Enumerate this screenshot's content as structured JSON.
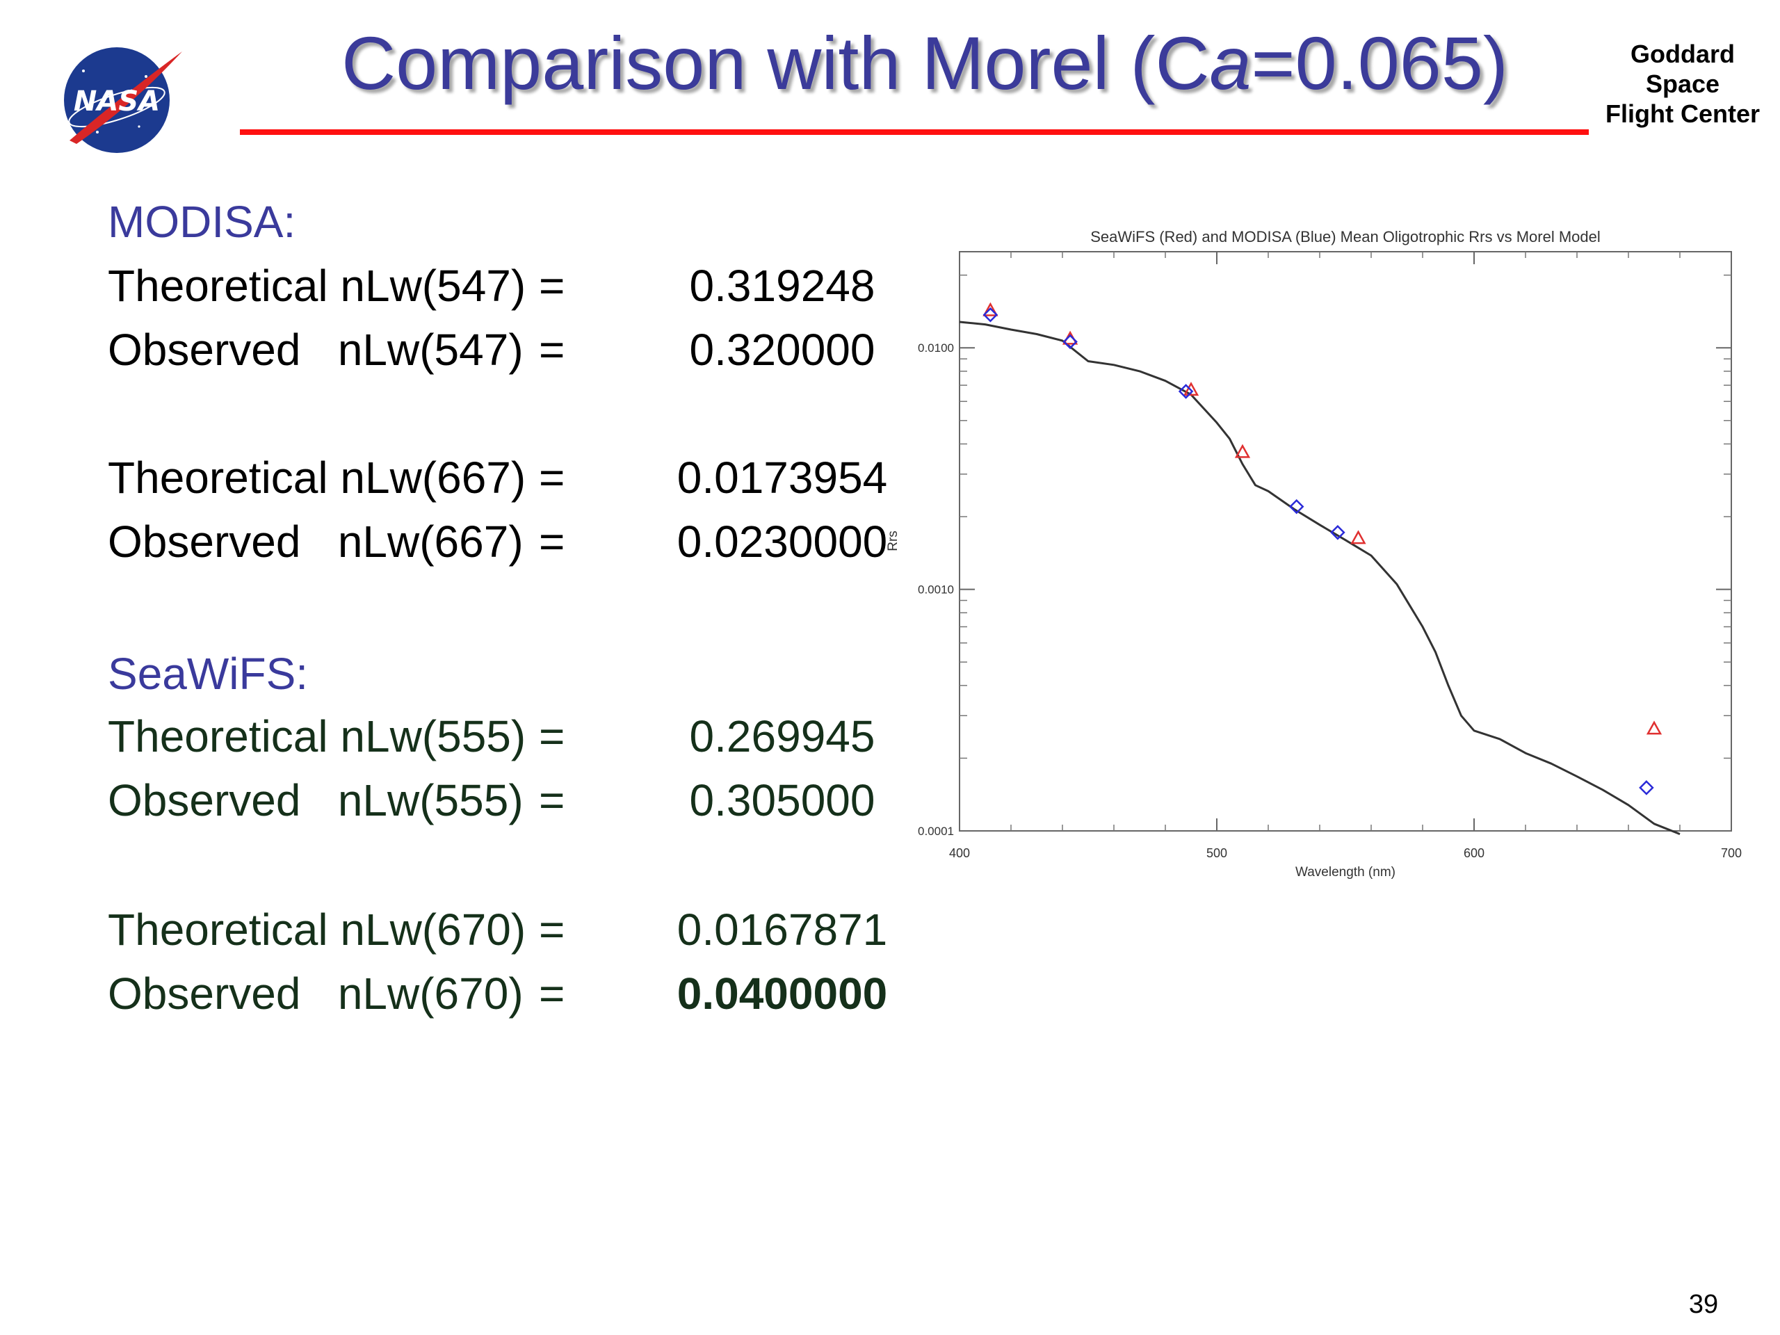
{
  "header": {
    "title_pre": "Comparison with Morel (C",
    "title_italic": "a",
    "title_post": "=0.065)",
    "org": [
      "Goddard",
      "Space",
      "Flight Center"
    ],
    "logo_text": "NASA"
  },
  "modisa": {
    "heading": "MODISA:",
    "rows": [
      {
        "label": "Theoretical nLw(547)",
        "eq": "=",
        "value": "0.319248"
      },
      {
        "label": "Observed   nLw(547)",
        "eq": "=",
        "value": "0.320000"
      },
      {
        "label": "Theoretical nLw(667)",
        "eq": "=",
        "value": "0.0173954"
      },
      {
        "label": "Observed   nLw(667)",
        "eq": "=",
        "value": "0.0230000"
      }
    ]
  },
  "seawifs": {
    "heading": "SeaWiFS:",
    "rows": [
      {
        "label": "Theoretical nLw(555)",
        "eq": "=",
        "value": "0.269945"
      },
      {
        "label": "Observed   nLw(555)",
        "eq": "=",
        "value": "0.305000"
      },
      {
        "label": "Theoretical nLw(670)",
        "eq": "=",
        "value": "0.0167871"
      },
      {
        "label": "Observed   nLw(670)",
        "eq": "=",
        "value": "0.0400000"
      }
    ]
  },
  "page_number": "39",
  "chart_data": {
    "type": "scatter",
    "title": "SeaWiFS (Red) and MODISA (Blue) Mean Oligotrophic Rrs vs Morel Model",
    "xlabel": "Wavelength (nm)",
    "ylabel": "Rrs",
    "xlim": [
      400,
      700
    ],
    "ylim": [
      0.0001,
      0.025
    ],
    "yscale": "log",
    "xticks": [
      "400",
      "500",
      "600",
      "700"
    ],
    "yticks": [
      {
        "v": 0.0001,
        "label": "0.0001"
      },
      {
        "v": 0.001,
        "label": "0.0010"
      },
      {
        "v": 0.01,
        "label": "0.0100"
      }
    ],
    "grid": false,
    "series": [
      {
        "name": "SeaWiFS",
        "color": "#e03030",
        "marker": "triangle",
        "x": [
          412,
          443,
          490,
          510,
          555,
          670
        ],
        "y": [
          0.0143,
          0.0109,
          0.0067,
          0.0037,
          0.00163,
          0.000265
        ]
      },
      {
        "name": "MODISA",
        "color": "#2a2ad8",
        "marker": "diamond",
        "x": [
          412,
          443,
          488,
          531,
          547,
          667
        ],
        "y": [
          0.0137,
          0.0106,
          0.0066,
          0.0022,
          0.00172,
          0.000151
        ]
      },
      {
        "name": "Morel Model",
        "color": "#333333",
        "marker": "line",
        "x": [
          400,
          410,
          420,
          430,
          440,
          450,
          460,
          470,
          480,
          490,
          500,
          505,
          510,
          515,
          520,
          530,
          540,
          550,
          560,
          570,
          580,
          585,
          590,
          595,
          600,
          610,
          620,
          630,
          640,
          650,
          660,
          670,
          680
        ],
        "y": [
          0.0128,
          0.0125,
          0.0119,
          0.0114,
          0.0107,
          0.0088,
          0.0085,
          0.008,
          0.0073,
          0.0064,
          0.0049,
          0.0042,
          0.0033,
          0.0027,
          0.00255,
          0.00215,
          0.00185,
          0.0016,
          0.00138,
          0.00105,
          0.0007,
          0.00055,
          0.0004,
          0.0003,
          0.00026,
          0.00024,
          0.00021,
          0.00019,
          0.000168,
          0.000148,
          0.000128,
          0.000107,
          9.7e-05
        ]
      }
    ]
  }
}
